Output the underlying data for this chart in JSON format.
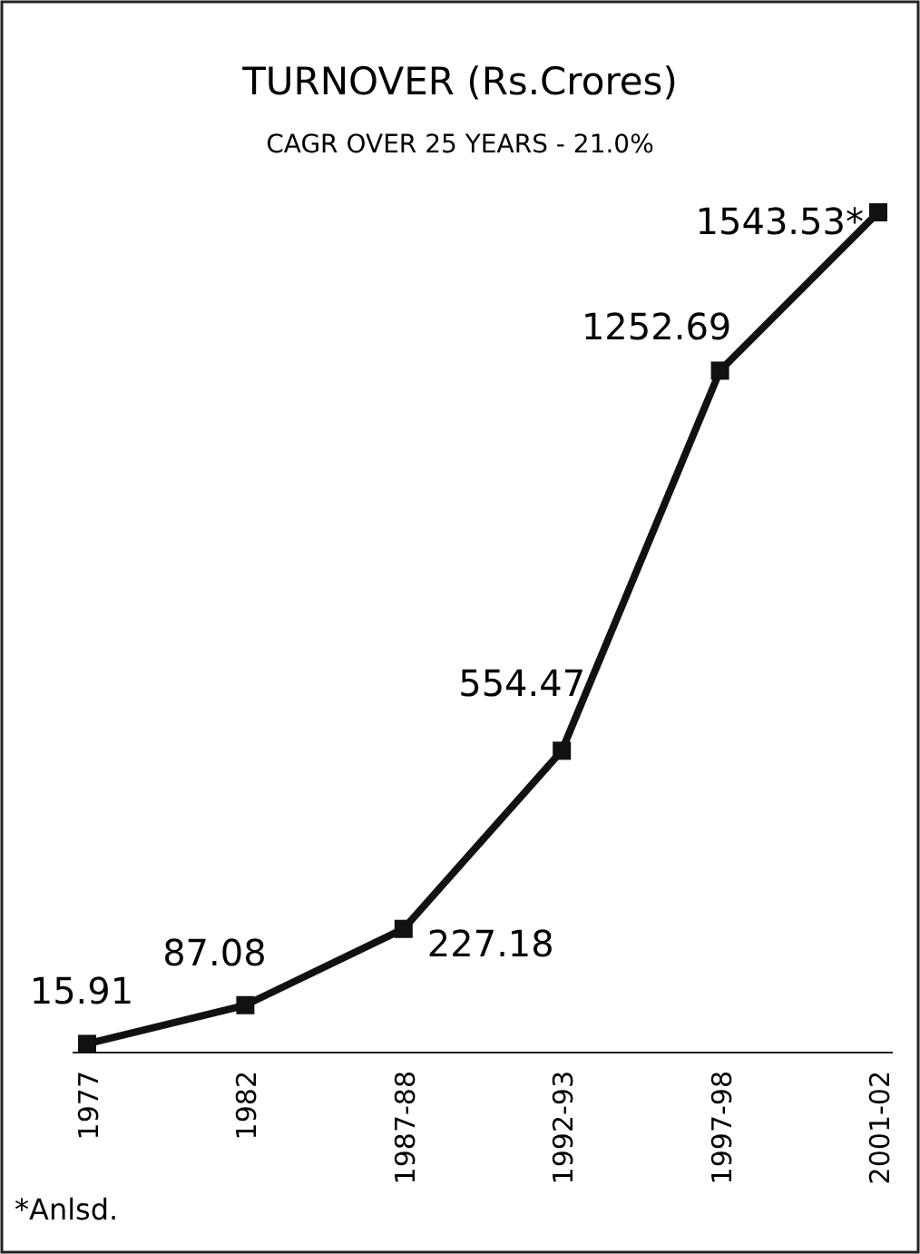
{
  "chart_data": {
    "type": "line",
    "title": "TURNOVER (Rs.Crores)",
    "subtitle": "CAGR OVER 25 YEARS - 21.0%",
    "categories": [
      "1977",
      "1982",
      "1987-88",
      "1992-93",
      "1997-98",
      "2001-02"
    ],
    "series": [
      {
        "color": "#111111",
        "values": [
          15.91,
          87.08,
          227.18,
          554.47,
          1252.69,
          1543.53
        ],
        "value_labels": [
          "15.91",
          "87.08",
          "227.18",
          "554.47",
          "1252.69",
          "1543.53*"
        ]
      }
    ],
    "relative": false,
    "marker": "square",
    "line_style": "solid",
    "annotations": [
      "*Anlsd."
    ]
  }
}
